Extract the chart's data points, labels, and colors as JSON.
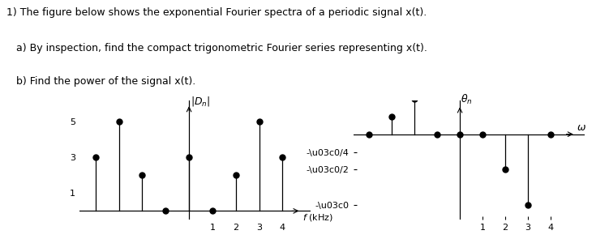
{
  "title_text": "1) The figure below shows the exponential Fourier spectra of a periodic signal x(t).",
  "subtitle1": "   a) By inspection, find the compact trigonometric Fourier series representing x(t).",
  "subtitle2": "   b) Find the power of the signal x(t).",
  "mag_positions": [
    -4,
    -3,
    -2,
    -1,
    0,
    1,
    2,
    3,
    4
  ],
  "mag_values": [
    3,
    5,
    2,
    0,
    3,
    0,
    2,
    5,
    3
  ],
  "phase_positions": [
    -4,
    -3,
    -2,
    -1,
    0,
    1,
    2,
    3,
    4
  ],
  "phase_values": [
    0,
    0.7854,
    1.5708,
    0,
    0,
    0,
    -1.5708,
    -3.14159,
    0
  ],
  "mag_ylabel": "|D\\u2099|",
  "phase_ylabel": "\\u03b8\\u2099",
  "mag_xlabel": "f (kHz)",
  "phase_xlabel": "\\u03c9",
  "mag_yticks": [
    1,
    3,
    5
  ],
  "mag_xticks": [
    1,
    2,
    3,
    4
  ],
  "phase_yticks_vals": [
    -3.14159,
    -1.5708,
    -0.7854
  ],
  "phase_yticks_labels": [
    "-\\u03c0",
    "-\\u03c0/2",
    "-\\u03c0/4"
  ],
  "phase_xticks": [
    1,
    2,
    3,
    4
  ],
  "background": "#ffffff",
  "stem_color": "#000000",
  "marker_color": "#000000"
}
